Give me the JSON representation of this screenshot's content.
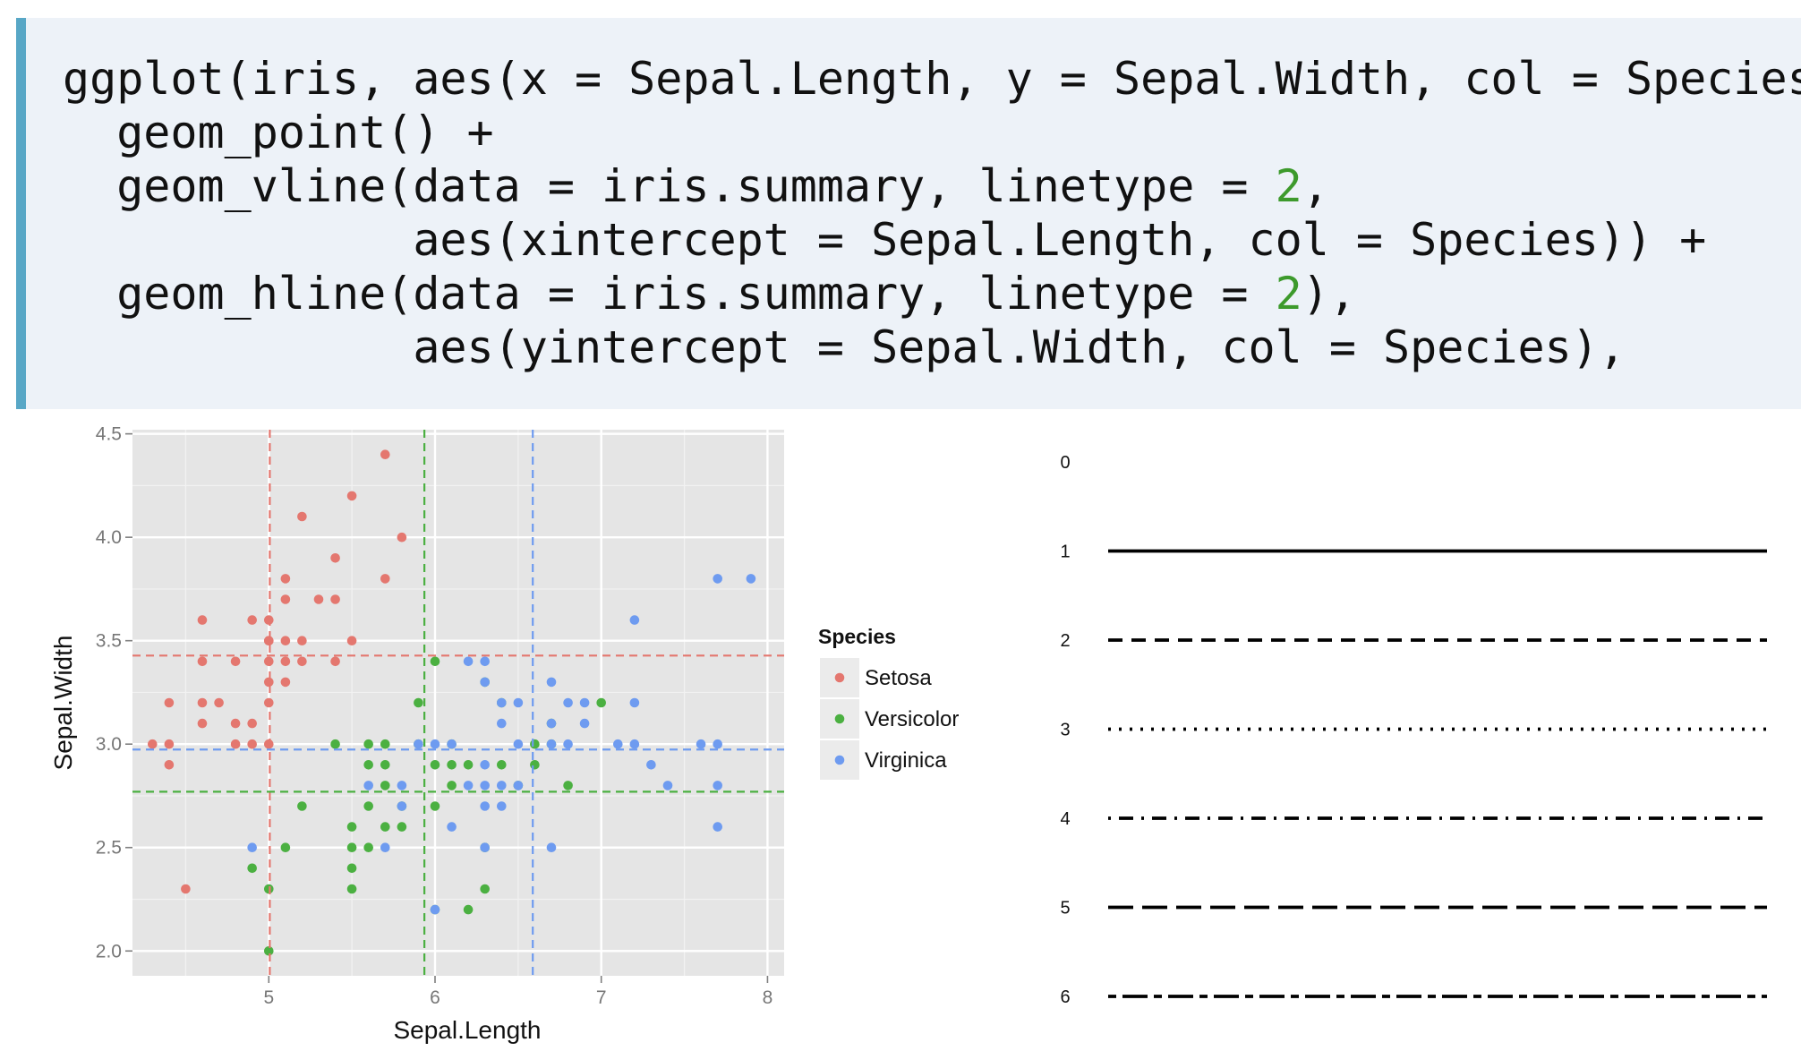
{
  "code": {
    "lines": [
      [
        {
          "t": "ggplot(iris, aes(x = Sepal.Length, y = Sepal.Width, col = Species))"
        }
      ],
      [
        {
          "t": "  geom_point() +"
        }
      ],
      [
        {
          "t": "  geom_vline(data = iris.summary, linetype = "
        },
        {
          "t": "2",
          "n": true
        },
        {
          "t": ","
        }
      ],
      [
        {
          "t": "             aes(xintercept = Sepal.Length, col = Species)) +"
        }
      ],
      [
        {
          "t": "  geom_hline(data = iris.summary, linetype = "
        },
        {
          "t": "2",
          "n": true
        },
        {
          "t": "),"
        }
      ],
      [
        {
          "t": "             aes(yintercept = Sepal.Width, col = Species),"
        }
      ]
    ]
  },
  "chart_data": [
    {
      "type": "scatter",
      "xlabel": "Sepal.Length",
      "ylabel": "Sepal.Width",
      "xlim": [
        4.18,
        8.1
      ],
      "ylim": [
        1.88,
        4.52
      ],
      "xticks": [
        5,
        6,
        7,
        8
      ],
      "yticks": [
        "2.0",
        "2.5",
        "3.0",
        "3.5",
        "4.0",
        "4.5"
      ],
      "grid": true,
      "legend": {
        "title": "Species",
        "position": "right",
        "entries": [
          "Setosa",
          "Versicolor",
          "Virginica"
        ]
      },
      "colors": {
        "Setosa": "#e4776f",
        "Versicolor": "#4bb041",
        "Virginica": "#6e9bf0",
        "panel": "#e5e5e5",
        "grid": "#ffffff"
      },
      "series": [
        {
          "name": "Setosa",
          "points": [
            [
              4.3,
              3.0
            ],
            [
              4.4,
              3.2
            ],
            [
              4.4,
              3.0
            ],
            [
              4.4,
              2.9
            ],
            [
              4.5,
              2.3
            ],
            [
              4.6,
              3.6
            ],
            [
              4.6,
              3.4
            ],
            [
              4.6,
              3.2
            ],
            [
              4.6,
              3.1
            ],
            [
              4.7,
              3.2
            ],
            [
              4.8,
              3.4
            ],
            [
              4.8,
              3.1
            ],
            [
              4.8,
              3.0
            ],
            [
              4.9,
              3.1
            ],
            [
              4.9,
              3.0
            ],
            [
              4.9,
              3.6
            ],
            [
              5.0,
              3.6
            ],
            [
              5.0,
              3.5
            ],
            [
              5.0,
              3.4
            ],
            [
              5.0,
              3.3
            ],
            [
              5.0,
              3.2
            ],
            [
              5.0,
              3.0
            ],
            [
              5.0,
              3.5
            ],
            [
              5.1,
              3.8
            ],
            [
              5.1,
              3.7
            ],
            [
              5.1,
              3.5
            ],
            [
              5.1,
              3.4
            ],
            [
              5.1,
              3.3
            ],
            [
              5.2,
              4.1
            ],
            [
              5.2,
              3.5
            ],
            [
              5.2,
              3.4
            ],
            [
              5.3,
              3.7
            ],
            [
              5.4,
              3.9
            ],
            [
              5.4,
              3.7
            ],
            [
              5.4,
              3.4
            ],
            [
              5.5,
              4.2
            ],
            [
              5.5,
              3.5
            ],
            [
              5.7,
              4.4
            ],
            [
              5.7,
              3.8
            ],
            [
              5.8,
              4.0
            ]
          ]
        },
        {
          "name": "Versicolor",
          "points": [
            [
              4.9,
              2.4
            ],
            [
              5.0,
              2.3
            ],
            [
              5.0,
              2.0
            ],
            [
              5.1,
              2.5
            ],
            [
              5.2,
              2.7
            ],
            [
              5.4,
              3.0
            ],
            [
              5.5,
              2.6
            ],
            [
              5.5,
              2.5
            ],
            [
              5.5,
              2.4
            ],
            [
              5.5,
              2.3
            ],
            [
              5.6,
              3.0
            ],
            [
              5.6,
              2.9
            ],
            [
              5.6,
              2.7
            ],
            [
              5.6,
              2.5
            ],
            [
              5.7,
              3.0
            ],
            [
              5.7,
              2.9
            ],
            [
              5.7,
              2.8
            ],
            [
              5.7,
              2.6
            ],
            [
              5.8,
              2.7
            ],
            [
              5.8,
              2.6
            ],
            [
              5.9,
              3.2
            ],
            [
              5.9,
              3.0
            ],
            [
              6.0,
              3.4
            ],
            [
              6.0,
              2.9
            ],
            [
              6.0,
              2.7
            ],
            [
              6.0,
              2.2
            ],
            [
              6.1,
              3.0
            ],
            [
              6.1,
              2.9
            ],
            [
              6.1,
              2.8
            ],
            [
              6.2,
              2.9
            ],
            [
              6.2,
              2.2
            ],
            [
              6.3,
              3.3
            ],
            [
              6.3,
              2.5
            ],
            [
              6.3,
              2.3
            ],
            [
              6.4,
              3.2
            ],
            [
              6.4,
              2.9
            ],
            [
              6.5,
              2.8
            ],
            [
              6.6,
              3.0
            ],
            [
              6.6,
              2.9
            ],
            [
              6.7,
              3.1
            ],
            [
              6.7,
              3.0
            ],
            [
              6.8,
              2.8
            ],
            [
              7.0,
              3.2
            ]
          ]
        },
        {
          "name": "Virginica",
          "points": [
            [
              4.9,
              2.5
            ],
            [
              5.6,
              2.8
            ],
            [
              5.7,
              2.5
            ],
            [
              5.8,
              2.8
            ],
            [
              5.8,
              2.7
            ],
            [
              5.9,
              3.0
            ],
            [
              6.0,
              3.0
            ],
            [
              6.0,
              2.2
            ],
            [
              6.1,
              3.0
            ],
            [
              6.1,
              2.6
            ],
            [
              6.2,
              3.4
            ],
            [
              6.2,
              2.8
            ],
            [
              6.3,
              3.4
            ],
            [
              6.3,
              3.3
            ],
            [
              6.3,
              2.9
            ],
            [
              6.3,
              2.8
            ],
            [
              6.3,
              2.7
            ],
            [
              6.3,
              2.5
            ],
            [
              6.4,
              3.2
            ],
            [
              6.4,
              3.1
            ],
            [
              6.4,
              2.8
            ],
            [
              6.4,
              2.7
            ],
            [
              6.5,
              3.2
            ],
            [
              6.5,
              3.0
            ],
            [
              6.5,
              2.8
            ],
            [
              6.7,
              3.3
            ],
            [
              6.7,
              3.1
            ],
            [
              6.7,
              3.0
            ],
            [
              6.7,
              2.5
            ],
            [
              6.8,
              3.2
            ],
            [
              6.8,
              3.0
            ],
            [
              6.9,
              3.2
            ],
            [
              6.9,
              3.1
            ],
            [
              7.1,
              3.0
            ],
            [
              7.2,
              3.6
            ],
            [
              7.2,
              3.2
            ],
            [
              7.2,
              3.0
            ],
            [
              7.3,
              2.9
            ],
            [
              7.4,
              2.8
            ],
            [
              7.6,
              3.0
            ],
            [
              7.7,
              3.8
            ],
            [
              7.7,
              3.0
            ],
            [
              7.7,
              2.8
            ],
            [
              7.7,
              2.6
            ],
            [
              7.9,
              3.8
            ]
          ]
        }
      ],
      "reference_lines": [
        {
          "species": "Setosa",
          "xintercept": 5.006,
          "yintercept": 3.428
        },
        {
          "species": "Versicolor",
          "xintercept": 5.936,
          "yintercept": 2.77
        },
        {
          "species": "Virginica",
          "xintercept": 6.588,
          "yintercept": 2.974
        }
      ]
    },
    {
      "type": "line",
      "series": [
        {
          "name": "0",
          "dash": "blank"
        },
        {
          "name": "1",
          "dash": "solid"
        },
        {
          "name": "2",
          "dash": "dashed"
        },
        {
          "name": "3",
          "dash": "dotted"
        },
        {
          "name": "4",
          "dash": "dotdash"
        },
        {
          "name": "5",
          "dash": "longdash"
        },
        {
          "name": "6",
          "dash": "twodash"
        }
      ],
      "line_color": "#000000"
    }
  ]
}
